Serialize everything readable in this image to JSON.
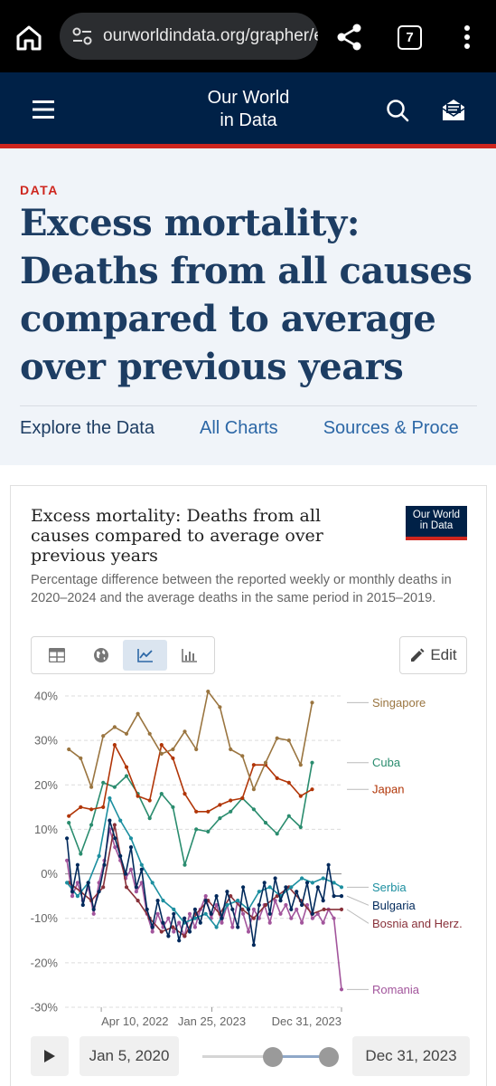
{
  "browser": {
    "url": "ourworldindata.org/grapher/ex",
    "tab_count": "7"
  },
  "site": {
    "logo_line1": "Our World",
    "logo_line2": "in Data"
  },
  "page": {
    "label": "DATA",
    "title": "Excess mortality: Deaths from all causes compared to average over previous years",
    "tabs": [
      "Explore the Data",
      "All Charts",
      "Sources & Proce"
    ]
  },
  "chart_card": {
    "title": "Excess mortality: Deaths from all causes compared to average over previous years",
    "subtitle": "Percentage difference between the reported weekly or monthly deaths in 2020–2024 and the average deaths in the same period in 2015–2019.",
    "badge_line1": "Our World",
    "badge_line2": "in Data",
    "view_tabs": [
      "table-icon",
      "globe-icon",
      "line-chart-icon",
      "bar-chart-icon"
    ],
    "active_view": 2,
    "edit_label": "Edit",
    "timeline_start": "Jan 5, 2020",
    "timeline_end": "Dec 31, 2023"
  },
  "chart_data": {
    "type": "line",
    "y_unit": "%",
    "ylim": [
      -30,
      40
    ],
    "yticks": [
      -30,
      -20,
      -10,
      0,
      10,
      20,
      30,
      40
    ],
    "ytick_labels": [
      "-30%",
      "-20%",
      "-10%",
      "0%",
      "10%",
      "20%",
      "30%",
      "40%"
    ],
    "xlim": [
      "2022-01-05",
      "2023-12-31"
    ],
    "xticks": [
      "2022-04-10",
      "2023-01-25",
      "2023-12-31"
    ],
    "xtick_labels": [
      "Apr 10, 2022",
      "Jan 25, 2023",
      "Dec 31, 2023"
    ],
    "grid": "horizontal dashed",
    "series": [
      {
        "name": "Singapore",
        "color": "#9a7540",
        "points": [
          [
            "2022-01-15",
            28
          ],
          [
            "2022-02-15",
            26
          ],
          [
            "2022-03-15",
            19.5
          ],
          [
            "2022-04-15",
            31
          ],
          [
            "2022-05-15",
            33
          ],
          [
            "2022-06-15",
            31.5
          ],
          [
            "2022-07-15",
            36
          ],
          [
            "2022-08-15",
            31.5
          ],
          [
            "2022-09-15",
            27
          ],
          [
            "2022-10-15",
            28
          ],
          [
            "2022-11-15",
            32
          ],
          [
            "2022-12-15",
            28
          ],
          [
            "2023-01-15",
            41
          ],
          [
            "2023-02-15",
            37.5
          ],
          [
            "2023-03-15",
            28
          ],
          [
            "2023-04-15",
            26.5
          ],
          [
            "2023-05-15",
            19
          ],
          [
            "2023-06-15",
            25
          ],
          [
            "2023-07-15",
            30.5
          ],
          [
            "2023-08-15",
            30
          ],
          [
            "2023-09-15",
            24.5
          ],
          [
            "2023-10-15",
            38.5
          ]
        ]
      },
      {
        "name": "Cuba",
        "color": "#2a8c6e",
        "points": [
          [
            "2022-01-15",
            11.5
          ],
          [
            "2022-02-15",
            4.5
          ],
          [
            "2022-03-15",
            11
          ],
          [
            "2022-04-15",
            20.5
          ],
          [
            "2022-05-15",
            19.5
          ],
          [
            "2022-06-15",
            22
          ],
          [
            "2022-07-15",
            18
          ],
          [
            "2022-08-15",
            12.5
          ],
          [
            "2022-09-15",
            18
          ],
          [
            "2022-10-15",
            15
          ],
          [
            "2022-11-15",
            2
          ],
          [
            "2022-12-15",
            10
          ],
          [
            "2023-01-15",
            9.5
          ],
          [
            "2023-02-15",
            12.5
          ],
          [
            "2023-03-15",
            14
          ],
          [
            "2023-04-15",
            17
          ],
          [
            "2023-05-15",
            14.5
          ],
          [
            "2023-06-15",
            11.5
          ],
          [
            "2023-07-15",
            9
          ],
          [
            "2023-08-15",
            13
          ],
          [
            "2023-09-15",
            10.5
          ],
          [
            "2023-10-15",
            25
          ]
        ]
      },
      {
        "name": "Japan",
        "color": "#b13507",
        "points": [
          [
            "2022-01-15",
            13
          ],
          [
            "2022-02-15",
            15
          ],
          [
            "2022-03-15",
            14.5
          ],
          [
            "2022-04-15",
            15
          ],
          [
            "2022-05-15",
            29
          ],
          [
            "2022-06-15",
            24
          ],
          [
            "2022-07-15",
            17.5
          ],
          [
            "2022-08-15",
            16.5
          ],
          [
            "2022-09-15",
            29
          ],
          [
            "2022-10-15",
            26
          ],
          [
            "2022-11-15",
            18
          ],
          [
            "2022-12-15",
            14
          ],
          [
            "2023-01-15",
            14
          ],
          [
            "2023-02-15",
            15.5
          ],
          [
            "2023-03-15",
            16.5
          ],
          [
            "2023-04-15",
            17
          ],
          [
            "2023-05-15",
            24.5
          ],
          [
            "2023-06-15",
            24.5
          ],
          [
            "2023-07-15",
            21.5
          ],
          [
            "2023-08-15",
            20.5
          ],
          [
            "2023-09-15",
            17.5
          ],
          [
            "2023-10-15",
            19
          ]
        ]
      },
      {
        "name": "Serbia",
        "color": "#1c8fa0",
        "points": [
          [
            "2022-01-10",
            -2
          ],
          [
            "2022-02-07",
            -5
          ],
          [
            "2022-03-07",
            -2
          ],
          [
            "2022-04-04",
            4
          ],
          [
            "2022-05-02",
            17
          ],
          [
            "2022-05-30",
            12
          ],
          [
            "2022-06-27",
            8
          ],
          [
            "2022-07-25",
            2
          ],
          [
            "2022-08-22",
            -2
          ],
          [
            "2022-09-19",
            -6
          ],
          [
            "2022-10-17",
            -8
          ],
          [
            "2022-11-14",
            -11
          ],
          [
            "2022-12-12",
            -10
          ],
          [
            "2023-01-09",
            -9
          ],
          [
            "2023-02-06",
            -12
          ],
          [
            "2023-03-06",
            -7
          ],
          [
            "2023-04-03",
            -6
          ],
          [
            "2023-05-01",
            -8
          ],
          [
            "2023-05-29",
            -4
          ],
          [
            "2023-06-26",
            -3
          ],
          [
            "2023-07-24",
            -5
          ],
          [
            "2023-08-21",
            -3
          ],
          [
            "2023-09-18",
            -1
          ],
          [
            "2023-10-16",
            -2
          ],
          [
            "2023-11-13",
            -1
          ],
          [
            "2023-12-11",
            -2
          ],
          [
            "2023-12-31",
            -3
          ]
        ]
      },
      {
        "name": "Bulgaria",
        "color": "#00295b",
        "points": [
          [
            "2022-01-10",
            8
          ],
          [
            "2022-01-24",
            -4
          ],
          [
            "2022-02-07",
            2
          ],
          [
            "2022-02-21",
            -7
          ],
          [
            "2022-03-07",
            -2
          ],
          [
            "2022-03-21",
            -8
          ],
          [
            "2022-04-04",
            -4
          ],
          [
            "2022-04-18",
            2
          ],
          [
            "2022-05-02",
            12
          ],
          [
            "2022-05-16",
            8
          ],
          [
            "2022-05-30",
            4
          ],
          [
            "2022-06-13",
            0
          ],
          [
            "2022-06-27",
            6
          ],
          [
            "2022-07-11",
            -3
          ],
          [
            "2022-07-25",
            1
          ],
          [
            "2022-08-08",
            -8
          ],
          [
            "2022-08-22",
            -12
          ],
          [
            "2022-09-05",
            -6
          ],
          [
            "2022-09-19",
            -11
          ],
          [
            "2022-10-03",
            -14
          ],
          [
            "2022-10-17",
            -9
          ],
          [
            "2022-10-31",
            -15
          ],
          [
            "2022-11-14",
            -10
          ],
          [
            "2022-11-28",
            -13
          ],
          [
            "2022-12-12",
            -8
          ],
          [
            "2022-12-26",
            -11
          ],
          [
            "2023-01-09",
            -6
          ],
          [
            "2023-01-23",
            -9
          ],
          [
            "2023-02-06",
            -5
          ],
          [
            "2023-02-20",
            -10
          ],
          [
            "2023-03-06",
            -4
          ],
          [
            "2023-03-20",
            -8
          ],
          [
            "2023-04-03",
            -12
          ],
          [
            "2023-04-17",
            -3
          ],
          [
            "2023-05-01",
            -8
          ],
          [
            "2023-05-15",
            -16
          ],
          [
            "2023-05-29",
            -7
          ],
          [
            "2023-06-12",
            -2
          ],
          [
            "2023-06-26",
            -9
          ],
          [
            "2023-07-10",
            -1
          ],
          [
            "2023-07-24",
            -6
          ],
          [
            "2023-08-07",
            -3
          ],
          [
            "2023-08-21",
            -8
          ],
          [
            "2023-09-04",
            -4
          ],
          [
            "2023-09-18",
            -7
          ],
          [
            "2023-10-02",
            -2
          ],
          [
            "2023-10-16",
            -9
          ],
          [
            "2023-10-30",
            -3
          ],
          [
            "2023-11-13",
            -6
          ],
          [
            "2023-11-27",
            2
          ],
          [
            "2023-12-11",
            -5
          ],
          [
            "2023-12-31",
            -5
          ]
        ]
      },
      {
        "name": "Bosnia and Herz.",
        "color": "#883039",
        "points": [
          [
            "2022-01-15",
            -2
          ],
          [
            "2022-02-15",
            -4
          ],
          [
            "2022-03-15",
            -6
          ],
          [
            "2022-04-15",
            -3
          ],
          [
            "2022-05-15",
            11
          ],
          [
            "2022-06-15",
            -3
          ],
          [
            "2022-07-15",
            -6
          ],
          [
            "2022-08-15",
            -10
          ],
          [
            "2022-09-15",
            -13
          ],
          [
            "2022-10-15",
            -12
          ],
          [
            "2022-11-15",
            -14
          ],
          [
            "2022-12-15",
            -9
          ],
          [
            "2023-01-15",
            -6
          ],
          [
            "2023-02-15",
            -9
          ],
          [
            "2023-03-15",
            -5
          ],
          [
            "2023-04-15",
            -8
          ],
          [
            "2023-05-15",
            -10
          ],
          [
            "2023-06-15",
            -7
          ],
          [
            "2023-07-15",
            -5
          ],
          [
            "2023-08-15",
            -3
          ],
          [
            "2023-09-15",
            -6
          ],
          [
            "2023-10-15",
            -9
          ],
          [
            "2023-11-15",
            -8
          ],
          [
            "2023-12-31",
            -8
          ]
        ]
      },
      {
        "name": "Romania",
        "color": "#a2559c",
        "points": [
          [
            "2022-01-10",
            3
          ],
          [
            "2022-01-24",
            -5
          ],
          [
            "2022-02-07",
            -2
          ],
          [
            "2022-02-21",
            -6
          ],
          [
            "2022-03-07",
            -3
          ],
          [
            "2022-03-21",
            -9
          ],
          [
            "2022-04-04",
            -2
          ],
          [
            "2022-04-18",
            3
          ],
          [
            "2022-05-02",
            10
          ],
          [
            "2022-05-16",
            6
          ],
          [
            "2022-05-30",
            3
          ],
          [
            "2022-06-13",
            -1
          ],
          [
            "2022-06-27",
            1
          ],
          [
            "2022-07-11",
            -4
          ],
          [
            "2022-07-25",
            -2
          ],
          [
            "2022-08-08",
            -9
          ],
          [
            "2022-08-22",
            -13
          ],
          [
            "2022-09-05",
            -9
          ],
          [
            "2022-09-19",
            -12
          ],
          [
            "2022-10-03",
            -10
          ],
          [
            "2022-10-17",
            -13
          ],
          [
            "2022-10-31",
            -11
          ],
          [
            "2022-11-14",
            -14
          ],
          [
            "2022-11-28",
            -9
          ],
          [
            "2022-12-12",
            -12
          ],
          [
            "2022-12-26",
            -8
          ],
          [
            "2023-01-09",
            -5
          ],
          [
            "2023-01-23",
            -10
          ],
          [
            "2023-02-06",
            -7
          ],
          [
            "2023-02-20",
            -11
          ],
          [
            "2023-03-06",
            -7
          ],
          [
            "2023-03-20",
            -12
          ],
          [
            "2023-04-03",
            -6
          ],
          [
            "2023-04-17",
            -9
          ],
          [
            "2023-05-01",
            -13
          ],
          [
            "2023-05-15",
            -8
          ],
          [
            "2023-05-29",
            -10
          ],
          [
            "2023-06-12",
            -7
          ],
          [
            "2023-06-26",
            -11
          ],
          [
            "2023-07-10",
            -6
          ],
          [
            "2023-07-24",
            -9
          ],
          [
            "2023-08-07",
            -7
          ],
          [
            "2023-08-21",
            -10
          ],
          [
            "2023-09-04",
            -8
          ],
          [
            "2023-09-18",
            -11
          ],
          [
            "2023-10-02",
            -7
          ],
          [
            "2023-10-16",
            -10
          ],
          [
            "2023-10-30",
            -9
          ],
          [
            "2023-11-13",
            -11
          ],
          [
            "2023-11-27",
            -8
          ],
          [
            "2023-12-11",
            -10
          ],
          [
            "2023-12-31",
            -26
          ]
        ]
      }
    ],
    "label_order_px": {}
  }
}
